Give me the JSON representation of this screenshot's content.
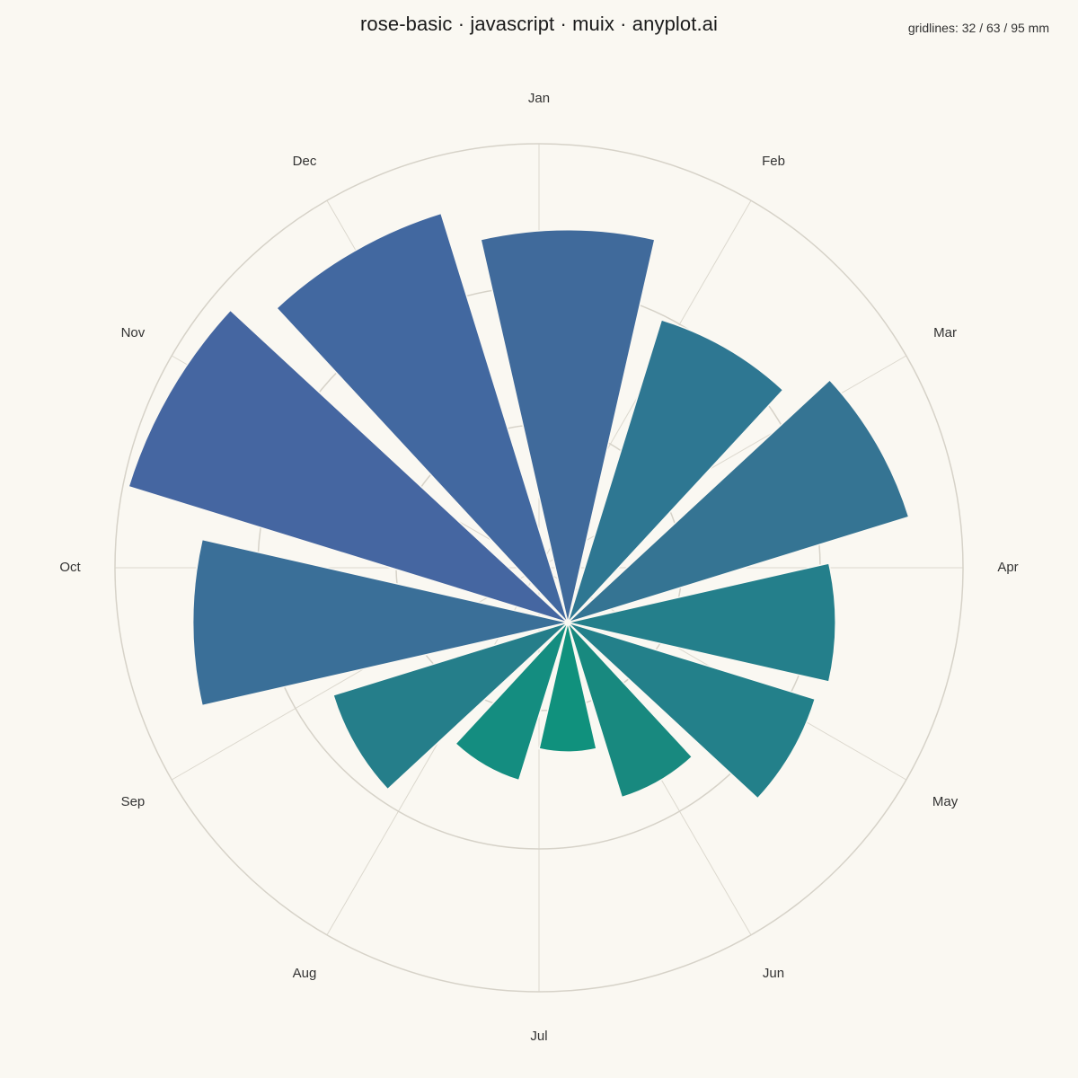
{
  "title": "rose-basic · javascript · muix · anyplot.ai",
  "gridline_note": "gridlines: 32 / 63 / 95 mm",
  "chart_data": {
    "type": "rose",
    "unit": "mm",
    "categories": [
      "Jan",
      "Feb",
      "Mar",
      "Apr",
      "May",
      "Jun",
      "Jul",
      "Aug",
      "Sep",
      "Oct",
      "Nov",
      "Dec"
    ],
    "values": [
      88,
      71,
      80,
      60,
      58,
      41,
      29,
      37,
      55,
      84,
      103,
      96
    ],
    "gridlines": [
      32,
      63,
      95
    ],
    "max_radius_value": 95,
    "grid": true,
    "colors": [
      "#406a9b",
      "#2e7792",
      "#357493",
      "#247f8b",
      "#23808a",
      "#18897f",
      "#10917d",
      "#148d80",
      "#257e8a",
      "#3a6f98",
      "#4566a1",
      "#4268a0"
    ]
  }
}
